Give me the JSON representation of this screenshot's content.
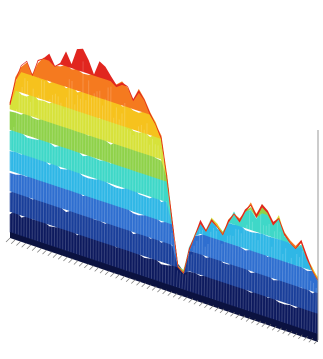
{
  "chart_data": {
    "type": "area",
    "title": "",
    "xlabel": "",
    "ylabel": "",
    "grid": false,
    "legend": "none",
    "colormap": [
      "#0d1a5e",
      "#1a3f9a",
      "#2f6fd0",
      "#2fb7e6",
      "#3fd8c8",
      "#8fd24a",
      "#d7e23a",
      "#f6c21d",
      "#f57a1f",
      "#e1261f"
    ],
    "series": [
      {
        "values": [
          0.62,
          0.75,
          0.83,
          0.86,
          0.8,
          0.88,
          0.9,
          0.93,
          0.88,
          0.91,
          0.96,
          0.92,
          0.99,
          1.0,
          0.95,
          0.9,
          0.98,
          0.97,
          0.93,
          0.88,
          0.92,
          0.9,
          0.84,
          0.89,
          0.86,
          0.8,
          0.76,
          0.7,
          0.52,
          0.3,
          0.1,
          0.08,
          0.2,
          0.28,
          0.35,
          0.32,
          0.38,
          0.36,
          0.33,
          0.4,
          0.45,
          0.42,
          0.48,
          0.52,
          0.47,
          0.53,
          0.51,
          0.46,
          0.5,
          0.43,
          0.4,
          0.38,
          0.42,
          0.35,
          0.3,
          0.26
        ]
      }
    ]
  }
}
